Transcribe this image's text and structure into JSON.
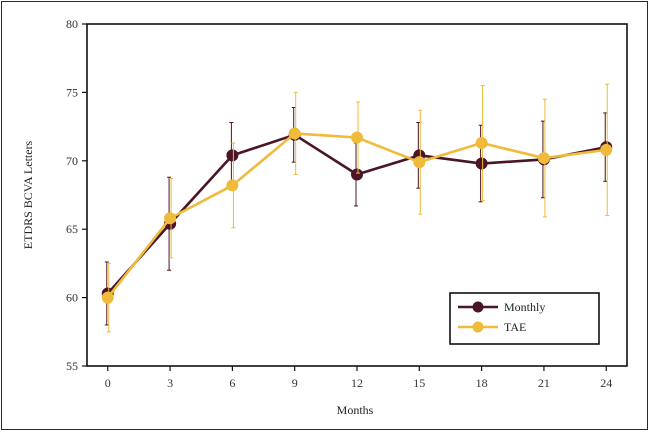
{
  "chart_data": {
    "type": "line",
    "title": "",
    "xlabel": "Months",
    "ylabel": "ETDRS BCVA Letters",
    "x": [
      0,
      3,
      6,
      9,
      12,
      15,
      18,
      21,
      24
    ],
    "xticks": [
      "0",
      "3",
      "6",
      "9",
      "12",
      "15",
      "18",
      "21",
      "24"
    ],
    "yticks": [
      "55",
      "60",
      "65",
      "70",
      "75",
      "80"
    ],
    "xlim": [
      -1,
      25
    ],
    "ylim": [
      55,
      80
    ],
    "grid": false,
    "legend_position": "bottom-right",
    "series": [
      {
        "name": "Monthly",
        "color": "#4a1526",
        "values": [
          60.3,
          65.4,
          70.4,
          71.9,
          69.0,
          70.4,
          69.8,
          70.1,
          71.0
        ],
        "error": [
          2.3,
          3.4,
          2.4,
          2.0,
          2.3,
          2.4,
          2.8,
          2.8,
          2.5
        ]
      },
      {
        "name": "TAE",
        "color": "#f0bb3a",
        "values": [
          60.0,
          65.8,
          68.2,
          72.0,
          71.7,
          69.9,
          71.3,
          70.2,
          70.8
        ],
        "error": [
          2.5,
          2.9,
          3.1,
          3.0,
          2.6,
          3.8,
          4.2,
          4.3,
          4.8
        ]
      }
    ]
  }
}
